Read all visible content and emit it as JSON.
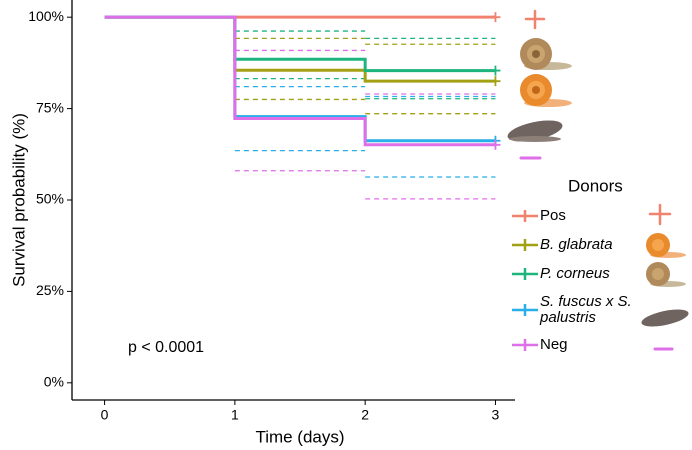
{
  "chart_data": {
    "type": "survival-step",
    "x_label": "Time (days)",
    "y_label": "Survival probability (%)",
    "annotation": "p < 0.0001",
    "legend_title": "Donors",
    "xlim": [
      -0.25,
      3.15
    ],
    "xticks": [
      0,
      1,
      2,
      3
    ],
    "ylim": [
      -4.7,
      104.7
    ],
    "yticks": [
      {
        "value": 0,
        "label": "0%"
      },
      {
        "value": 25,
        "label": "25%"
      },
      {
        "value": 50,
        "label": "50%"
      },
      {
        "value": 75,
        "label": "75%"
      },
      {
        "value": 100,
        "label": "100%"
      }
    ],
    "x": [
      0,
      1,
      2,
      3
    ],
    "series": [
      {
        "name": "Pos",
        "color": "#f0826f",
        "values": [
          100,
          100,
          100,
          100
        ]
      },
      {
        "name": "B. glabrata",
        "color": "#a3a014",
        "values": [
          100,
          85.5,
          82.5,
          82.5
        ],
        "upper": [
          null,
          94.2,
          92.6,
          92.6
        ],
        "lower": [
          null,
          77.5,
          73.6,
          73.6
        ]
      },
      {
        "name": "P. corneus",
        "color": "#1db57d",
        "values": [
          100,
          88.5,
          85.4,
          85.4
        ],
        "upper": [
          null,
          96.2,
          94.2,
          94.2
        ],
        "lower": [
          null,
          83.2,
          77.7,
          77.7
        ]
      },
      {
        "name": "S. fuscus x S. palustris",
        "color": "#28aee8",
        "values": [
          100,
          72.8,
          66.2,
          66.2
        ],
        "upper": [
          null,
          81.0,
          78.3,
          78.3
        ],
        "lower": [
          null,
          63.5,
          56.3,
          56.3
        ]
      },
      {
        "name": "Neg",
        "color": "#de6fe8",
        "values": [
          100,
          72.3,
          65.1,
          65.1
        ],
        "upper": [
          null,
          90.9,
          79.0,
          79.0
        ],
        "lower": [
          null,
          58.0,
          50.3,
          50.3
        ]
      }
    ]
  }
}
